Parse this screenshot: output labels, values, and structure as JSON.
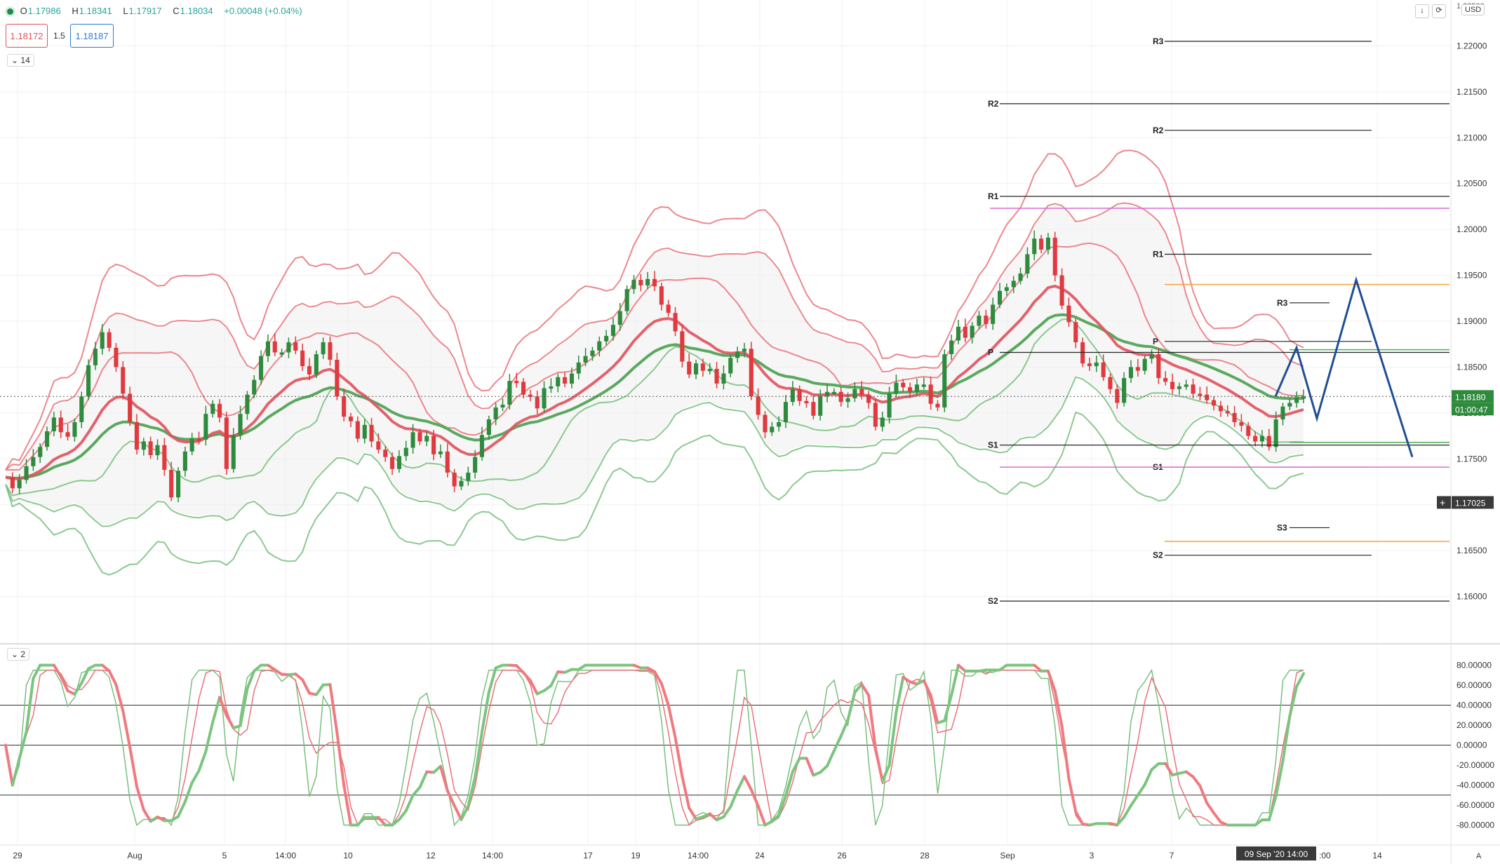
{
  "header": {
    "open_label": "O",
    "open": "1.17986",
    "high_label": "H",
    "high": "1.18341",
    "low_label": "L",
    "low": "1.17917",
    "close_label": "C",
    "close": "1.18034",
    "change": "+0.00048 (+0.04%)",
    "sell_price": "1.18172",
    "spread": "1.5",
    "buy_price": "1.18187",
    "indicator_main_param": "14",
    "indicator_osc_param": "2",
    "currency": "USD"
  },
  "chart_data": {
    "type": "candlestick",
    "price_axis": {
      "range": [
        1.155,
        1.225
      ],
      "ticks": [
        "1.22000",
        "1.21500",
        "1.21000",
        "1.20500",
        "1.20000",
        "1.19500",
        "1.19000",
        "1.18500",
        "1.18000",
        "1.17500",
        "1.17000",
        "1.16500",
        "1.16000"
      ],
      "top_partial_label": "1.22500"
    },
    "oscillator_axis": {
      "range": [
        -100,
        100
      ],
      "ticks": [
        "80.00000",
        "60.00000",
        "40.00000",
        "20.00000",
        "0.00000",
        "-20.00000",
        "-40.00000",
        "-60.00000",
        "-80.00000"
      ],
      "levels": [
        40,
        0,
        -50
      ]
    },
    "time_axis": {
      "labels": [
        "29",
        "Aug",
        "5",
        "14:00",
        "10",
        "12",
        "14:00",
        "17",
        "19",
        "14:00",
        "24",
        "26",
        "28",
        "Sep",
        "3",
        "7",
        "14"
      ],
      "cursor_label": "09 Sep '20   14:00",
      "partial_label": ":00"
    },
    "last_price_label": "1.18180",
    "countdown_label": "01:00:47",
    "crosshair_price_label": "1.17025",
    "close_path": [
      1.173,
      1.1718,
      1.1727,
      1.1742,
      1.1752,
      1.1763,
      1.178,
      1.1795,
      1.1779,
      1.1774,
      1.179,
      1.1818,
      1.1852,
      1.187,
      1.1888,
      1.1871,
      1.185,
      1.1821,
      1.179,
      1.176,
      1.1769,
      1.1754,
      1.1765,
      1.1738,
      1.1708,
      1.1737,
      1.1758,
      1.1772,
      1.1771,
      1.1799,
      1.181,
      1.1795,
      1.1739,
      1.1776,
      1.1799,
      1.182,
      1.1836,
      1.1862,
      1.1878,
      1.1866,
      1.1866,
      1.1877,
      1.1868,
      1.1851,
      1.1842,
      1.1864,
      1.1877,
      1.1858,
      1.1818,
      1.1796,
      1.1791,
      1.1772,
      1.1787,
      1.1769,
      1.176,
      1.1752,
      1.1739,
      1.1753,
      1.1762,
      1.1779,
      1.1769,
      1.1775,
      1.1755,
      1.1758,
      1.1735,
      1.172,
      1.1726,
      1.1735,
      1.1752,
      1.1776,
      1.1793,
      1.1806,
      1.1809,
      1.1835,
      1.1834,
      1.182,
      1.1818,
      1.1805,
      1.1827,
      1.1829,
      1.1839,
      1.1832,
      1.1843,
      1.1855,
      1.1862,
      1.1868,
      1.1878,
      1.1884,
      1.1896,
      1.1911,
      1.1935,
      1.1945,
      1.1939,
      1.1946,
      1.1938,
      1.1918,
      1.1909,
      1.1889,
      1.1856,
      1.1842,
      1.1854,
      1.1846,
      1.1848,
      1.1832,
      1.1843,
      1.186,
      1.1867,
      1.187,
      1.1818,
      1.1798,
      1.1779,
      1.1785,
      1.179,
      1.1812,
      1.1826,
      1.1813,
      1.1812,
      1.1797,
      1.1818,
      1.1823,
      1.1823,
      1.1812,
      1.1816,
      1.1826,
      1.182,
      1.1811,
      1.1785,
      1.1795,
      1.1821,
      1.1833,
      1.1828,
      1.1823,
      1.1831,
      1.1831,
      1.181,
      1.1806,
      1.1864,
      1.1879,
      1.1894,
      1.1882,
      1.1895,
      1.1906,
      1.1897,
      1.1918,
      1.1933,
      1.1937,
      1.1944,
      1.1952,
      1.1973,
      1.199,
      1.1978,
      1.1991,
      1.195,
      1.1917,
      1.1899,
      1.1877,
      1.1854,
      1.1851,
      1.1855,
      1.1839,
      1.1826,
      1.1811,
      1.1838,
      1.185,
      1.1846,
      1.1859,
      1.1864,
      1.1838,
      1.1834,
      1.1826,
      1.1829,
      1.1831,
      1.1821,
      1.182,
      1.1814,
      1.1808,
      1.1802,
      1.18,
      1.179,
      1.1786,
      1.1775,
      1.1769,
      1.1775,
      1.1763,
      1.1793,
      1.1807,
      1.1811,
      1.1817,
      1.1818
    ],
    "candle_bodies": [
      0.0006,
      0.001,
      0.0015,
      0.0016,
      0.0016,
      0.002,
      0.003,
      0.0034,
      0.0018,
      0.002,
      0.0022,
      0.0016,
      0.002,
      0.003,
      0.0045,
      0.0026,
      0.004,
      0.003,
      0.0022,
      0.0016,
      0.0009,
      0.001,
      0.0022,
      0.003,
      0.0024
    ],
    "pivots_weekly": [
      {
        "label": "R2",
        "price": 1.2137
      },
      {
        "label": "R1",
        "price": 1.2036
      },
      {
        "label": "P",
        "price": 1.1866
      },
      {
        "label": "S1",
        "price": 1.1765
      },
      {
        "label": "S2",
        "price": 1.1595
      }
    ],
    "pivots_daily": [
      {
        "label": "R3",
        "price": 1.2205
      },
      {
        "label": "R2",
        "price": 1.2108
      },
      {
        "label": "R1",
        "price": 1.1973
      },
      {
        "label": "P",
        "price": 1.1878
      },
      {
        "label": "S1",
        "price": 1.1741
      },
      {
        "label": "S2",
        "price": 1.1645
      }
    ],
    "pivots_intraday": [
      {
        "label": "R3",
        "price": 1.192
      },
      {
        "label": "S3",
        "price": 1.1675
      }
    ],
    "projection_path": [
      [
        0,
        1.1818
      ],
      [
        1,
        1.1871
      ],
      [
        2,
        1.1794
      ],
      [
        3,
        1.1945
      ],
      [
        4,
        1.1752
      ]
    ],
    "series_colors": {
      "up": "#2e8b3e",
      "down": "#e0393e",
      "band_upper": "#e8737a",
      "band_lower": "#78c07e",
      "ma_slow": "#5aa95e",
      "ma_fast": "#e0525e",
      "projection": "#1f4e96",
      "pivot_line": "#222222",
      "level_orange": "#f2a33a",
      "level_magenta": "#d76cd4",
      "level_green": "#4caf50"
    }
  }
}
